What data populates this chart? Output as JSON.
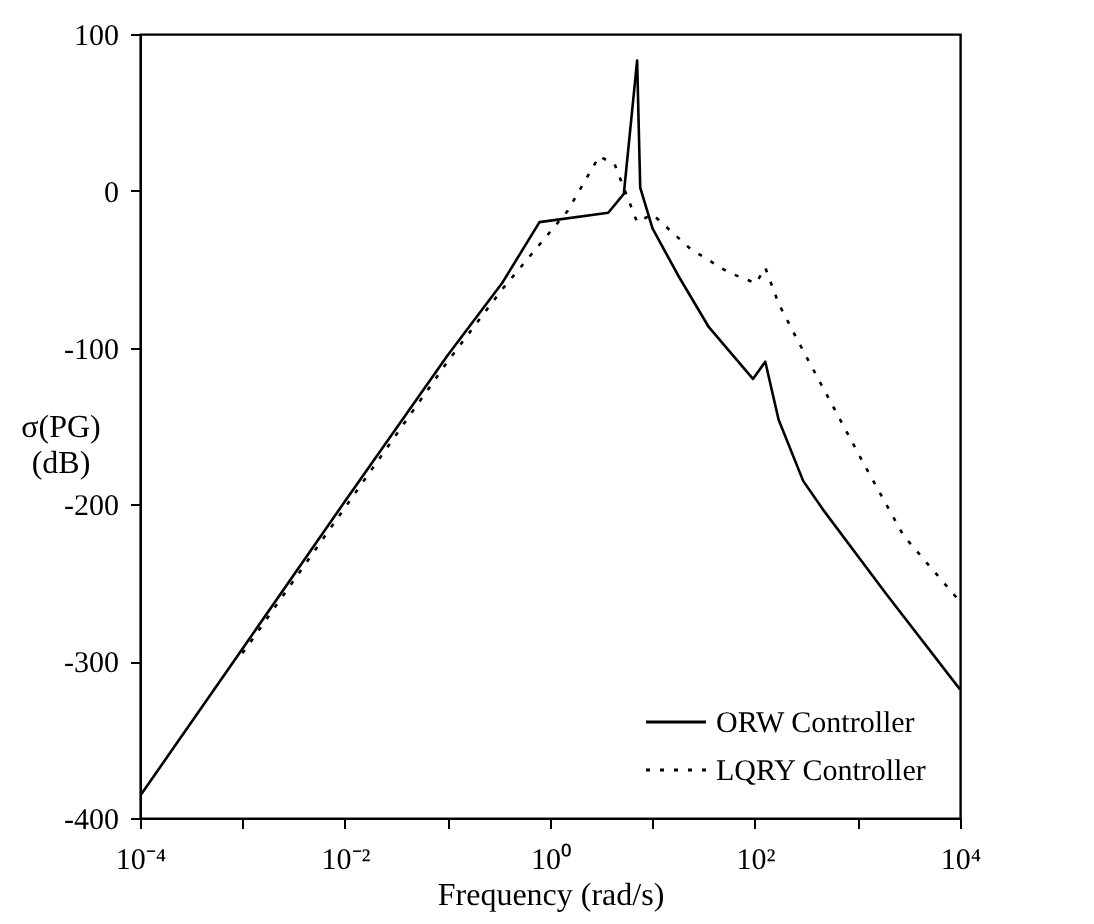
{
  "chart_data": {
    "type": "line",
    "xlabel": "Frequency (rad/s)",
    "ylabel": "σ(PG) (dB)",
    "log": "x",
    "xlim": [
      0.0001,
      10000
    ],
    "ylim": [
      -400,
      100
    ],
    "xticks": [
      {
        "value": 0.0001,
        "label": "10⁻⁴"
      },
      {
        "value": 0.001,
        "label": null
      },
      {
        "value": 0.01,
        "label": "10⁻²"
      },
      {
        "value": 0.1,
        "label": null
      },
      {
        "value": 1,
        "label": "10⁰"
      },
      {
        "value": 10,
        "label": null
      },
      {
        "value": 100,
        "label": "10²"
      },
      {
        "value": 1000,
        "label": null
      },
      {
        "value": 10000,
        "label": "10⁴"
      }
    ],
    "yticks": [
      -400,
      -300,
      -200,
      -100,
      0,
      100
    ],
    "grid": false,
    "legend": "bottom right",
    "series": [
      {
        "name": "ORW Controller",
        "color": "#000000",
        "line_style": "solid",
        "x": [
          0.0001,
          0.001,
          0.01,
          0.1,
          0.34,
          0.79,
          3.7,
          5.25,
          7.08,
          7.59,
          10,
          17.8,
          35.5,
          95.5,
          126,
          170,
          295,
          457,
          1900,
          10000
        ],
        "values": [
          -386,
          -292,
          -198,
          -105,
          -59,
          -20,
          -14,
          -2,
          83,
          2,
          -24,
          -54,
          -87,
          -120,
          -109,
          -146,
          -185,
          -203,
          -257,
          -318
        ]
      },
      {
        "name": "LQRY Controller",
        "color": "#000000",
        "line_style": "dotted",
        "x": [
          0.001,
          0.01,
          0.1,
          0.34,
          1.48,
          3.02,
          4.27,
          7.08,
          10,
          23.4,
          55,
          102,
          126,
          170,
          295,
          1150,
          2820,
          10000
        ],
        "values": [
          -295,
          -202,
          -109,
          -63,
          -13,
          22,
          17,
          -20,
          -15,
          -37,
          -52,
          -59,
          -49,
          -72,
          -102,
          -174,
          -220,
          -262
        ]
      }
    ]
  }
}
